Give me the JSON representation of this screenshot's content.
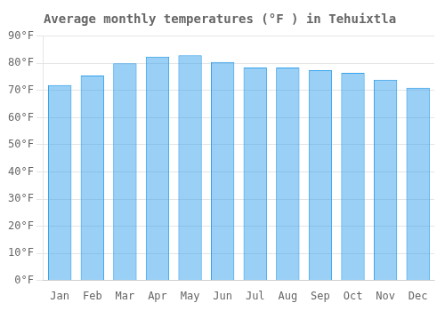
{
  "chart_data": {
    "type": "bar",
    "title": "Average monthly temperatures (°F ) in Tehuixtla",
    "categories": [
      "Jan",
      "Feb",
      "Mar",
      "Apr",
      "May",
      "Jun",
      "Jul",
      "Aug",
      "Sep",
      "Oct",
      "Nov",
      "Dec"
    ],
    "values": [
      72,
      75.5,
      80,
      82.5,
      83,
      80.5,
      78.5,
      78.5,
      77.5,
      76.5,
      74,
      71
    ],
    "ylim": [
      0,
      90
    ],
    "yticks": [
      {
        "value": 0,
        "label": "0°F"
      },
      {
        "value": 10,
        "label": "10°F"
      },
      {
        "value": 20,
        "label": "20°F"
      },
      {
        "value": 30,
        "label": "30°F"
      },
      {
        "value": 40,
        "label": "40°F"
      },
      {
        "value": 50,
        "label": "50°F"
      },
      {
        "value": 60,
        "label": "60°F"
      },
      {
        "value": 70,
        "label": "70°F"
      },
      {
        "value": 80,
        "label": "80°F"
      },
      {
        "value": 90,
        "label": "90°F"
      }
    ],
    "grid": true
  }
}
